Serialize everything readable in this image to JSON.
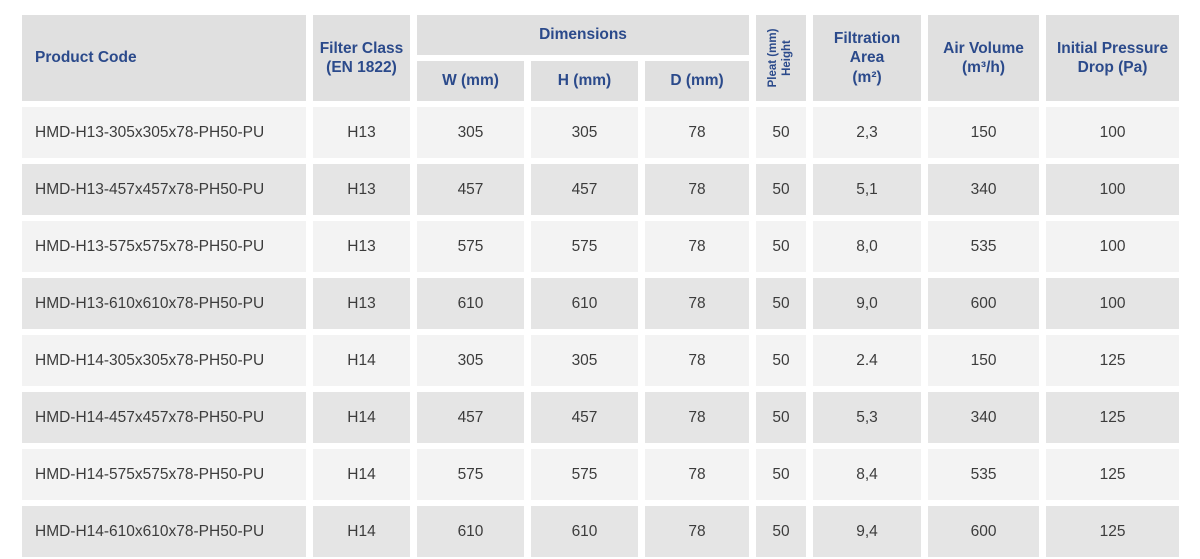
{
  "accent_color": "#2b4a8b",
  "row_colors": {
    "odd": "#f3f3f3",
    "even": "#e5e5e5",
    "header": "#e0e0e0"
  },
  "header": {
    "product_code": "Product Code",
    "filter_class": "Filter Class\n(EN 1822)",
    "dimensions": "Dimensions",
    "w": "W (mm)",
    "h": "H (mm)",
    "d": "D (mm)",
    "pleat_line1": "Pleat (mm)",
    "pleat_line2": "Height",
    "filtration_area": "Filtration\nArea\n(m²)",
    "air_volume": "Air Volume\n(m³/h)",
    "pressure_drop": "Initial Pressure\nDrop (Pa)"
  },
  "rows": [
    {
      "product_code": "HMD-H13-305x305x78-PH50-PU",
      "filter_class": "H13",
      "w": "305",
      "h": "305",
      "d": "78",
      "pleat_height": "50",
      "filtration_area": "2,3",
      "air_volume": "150",
      "pressure_drop": "100"
    },
    {
      "product_code": "HMD-H13-457x457x78-PH50-PU",
      "filter_class": "H13",
      "w": "457",
      "h": "457",
      "d": "78",
      "pleat_height": "50",
      "filtration_area": "5,1",
      "air_volume": "340",
      "pressure_drop": "100"
    },
    {
      "product_code": "HMD-H13-575x575x78-PH50-PU",
      "filter_class": "H13",
      "w": "575",
      "h": "575",
      "d": "78",
      "pleat_height": "50",
      "filtration_area": "8,0",
      "air_volume": "535",
      "pressure_drop": "100"
    },
    {
      "product_code": "HMD-H13-610x610x78-PH50-PU",
      "filter_class": "H13",
      "w": "610",
      "h": "610",
      "d": "78",
      "pleat_height": "50",
      "filtration_area": "9,0",
      "air_volume": "600",
      "pressure_drop": "100"
    },
    {
      "product_code": "HMD-H14-305x305x78-PH50-PU",
      "filter_class": "H14",
      "w": "305",
      "h": "305",
      "d": "78",
      "pleat_height": "50",
      "filtration_area": "2.4",
      "air_volume": "150",
      "pressure_drop": "125"
    },
    {
      "product_code": "HMD-H14-457x457x78-PH50-PU",
      "filter_class": "H14",
      "w": "457",
      "h": "457",
      "d": "78",
      "pleat_height": "50",
      "filtration_area": "5,3",
      "air_volume": "340",
      "pressure_drop": "125"
    },
    {
      "product_code": "HMD-H14-575x575x78-PH50-PU",
      "filter_class": "H14",
      "w": "575",
      "h": "575",
      "d": "78",
      "pleat_height": "50",
      "filtration_area": "8,4",
      "air_volume": "535",
      "pressure_drop": "125"
    },
    {
      "product_code": "HMD-H14-610x610x78-PH50-PU",
      "filter_class": "H14",
      "w": "610",
      "h": "610",
      "d": "78",
      "pleat_height": "50",
      "filtration_area": "9,4",
      "air_volume": "600",
      "pressure_drop": "125"
    }
  ]
}
